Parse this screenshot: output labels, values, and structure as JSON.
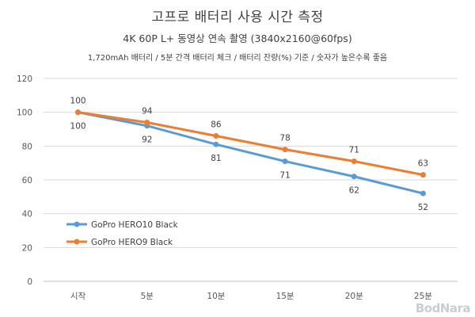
{
  "watermark": "BodNara",
  "chart_data": {
    "type": "line",
    "title": "고프로 배터리 사용 시간 측정",
    "subtitle": "4K 60P L+ 동영상 연속 촬영 (3840x2160@60fps)",
    "note": "1,720mAh 배터리 / 5분 간격 배터리 체크 / 배터리 잔량(%) 기준 / 숫자가 높은수록 좋음",
    "categories": [
      "시작",
      "5분",
      "10분",
      "15분",
      "20분",
      "25분"
    ],
    "series": [
      {
        "name": "GoPro HERO10 Black",
        "values": [
          100,
          92,
          81,
          71,
          62,
          52
        ],
        "color": "#5b9bd5",
        "label_position": "below"
      },
      {
        "name": "GoPro HERO9 Black",
        "values": [
          100,
          94,
          86,
          78,
          71,
          63
        ],
        "color": "#ed7d31",
        "label_position": "above"
      }
    ],
    "ylim": [
      0,
      120
    ],
    "yticks": [
      0,
      20,
      40,
      60,
      80,
      100,
      120
    ],
    "grid": true,
    "legend_position": "left-inside"
  }
}
